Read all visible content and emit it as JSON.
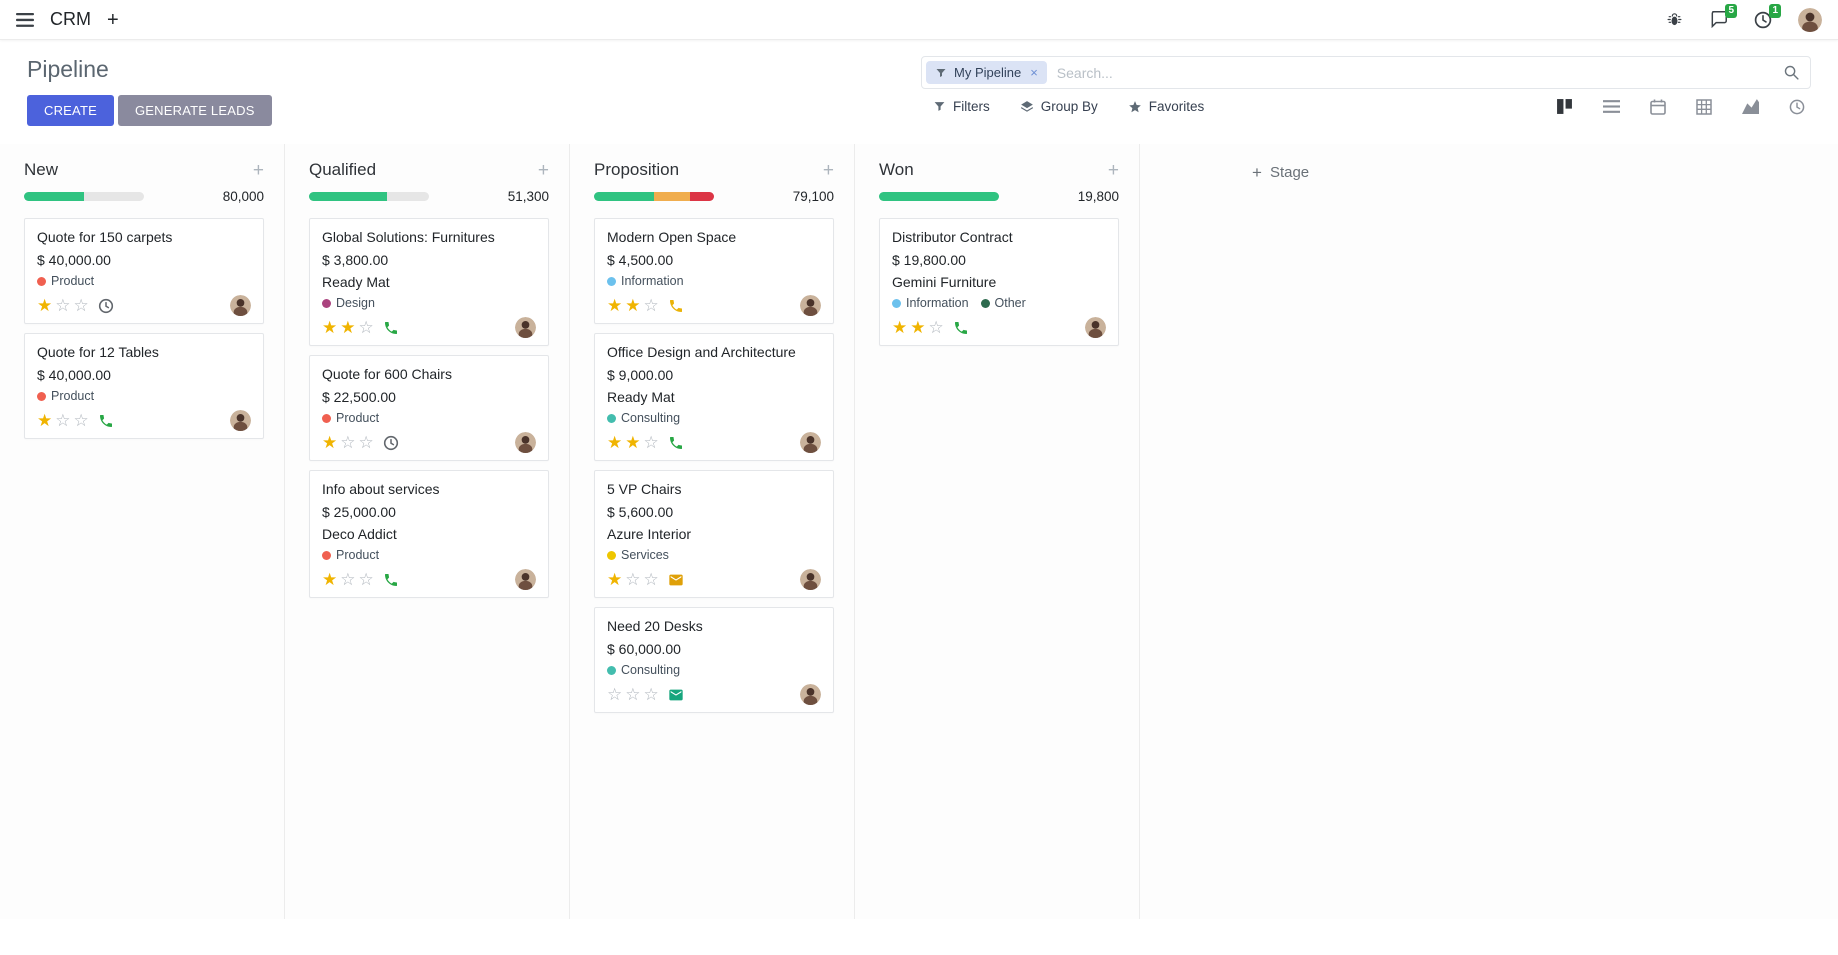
{
  "ui_glyphs": {
    "plus": "+",
    "close": "×",
    "star_filled": "★",
    "star_empty": "☆"
  },
  "colors": {
    "primary": "#4c62dc",
    "secondary": "#8a8a9e",
    "success": "#30c381",
    "warning": "#f0ad4e",
    "danger": "#dc3545",
    "star_gold": "#f0b400",
    "badge_green": "#28a745"
  },
  "navbar": {
    "app_name": "CRM",
    "messages_badge": "5",
    "activities_badge": "1"
  },
  "control_panel": {
    "title": "Pipeline",
    "create_label": "CREATE",
    "generate_leads_label": "GENERATE LEADS",
    "filters_label": "Filters",
    "group_by_label": "Group By",
    "favorites_label": "Favorites",
    "search": {
      "facet_label": "My Pipeline",
      "placeholder": "Search..."
    },
    "view_switcher": [
      "kanban",
      "list",
      "calendar",
      "pivot",
      "graph",
      "activity"
    ],
    "active_view": "kanban"
  },
  "board": {
    "add_stage_label": "Stage",
    "columns": [
      {
        "name": "New",
        "total": "80,000",
        "progress": [
          {
            "color": "#30c381",
            "pct": 50
          }
        ],
        "cards": [
          {
            "title": "Quote for 150 carpets",
            "amount": "$ 40,000.00",
            "partner": "",
            "tags": [
              {
                "label": "Product",
                "color": "#f06050"
              }
            ],
            "stars_filled": 1,
            "stars_total": 3,
            "activity": {
              "icon": "clock",
              "color": "#62676d"
            }
          },
          {
            "title": "Quote for 12 Tables",
            "amount": "$ 40,000.00",
            "partner": "",
            "tags": [
              {
                "label": "Product",
                "color": "#f06050"
              }
            ],
            "stars_filled": 1,
            "stars_total": 3,
            "activity": {
              "icon": "phone",
              "color": "#28a745"
            }
          }
        ]
      },
      {
        "name": "Qualified",
        "total": "51,300",
        "progress": [
          {
            "color": "#30c381",
            "pct": 65
          }
        ],
        "cards": [
          {
            "title": "Global Solutions: Furnitures",
            "amount": "$ 3,800.00",
            "partner": "Ready Mat",
            "tags": [
              {
                "label": "Design",
                "color": "#ab437f"
              }
            ],
            "stars_filled": 2,
            "stars_total": 3,
            "activity": {
              "icon": "phone",
              "color": "#28a745"
            }
          },
          {
            "title": "Quote for 600 Chairs",
            "amount": "$ 22,500.00",
            "partner": "",
            "tags": [
              {
                "label": "Product",
                "color": "#f06050"
              }
            ],
            "stars_filled": 1,
            "stars_total": 3,
            "activity": {
              "icon": "clock",
              "color": "#62676d"
            }
          },
          {
            "title": "Info about services",
            "amount": "$ 25,000.00",
            "partner": "Deco Addict",
            "tags": [
              {
                "label": "Product",
                "color": "#f06050"
              }
            ],
            "stars_filled": 1,
            "stars_total": 3,
            "activity": {
              "icon": "phone",
              "color": "#28a745"
            }
          }
        ]
      },
      {
        "name": "Proposition",
        "total": "79,100",
        "progress": [
          {
            "color": "#30c381",
            "pct": 50
          },
          {
            "color": "#f0ad4e",
            "pct": 30
          },
          {
            "color": "#dc3545",
            "pct": 20
          }
        ],
        "cards": [
          {
            "title": "Modern Open Space",
            "amount": "$ 4,500.00",
            "partner": "",
            "tags": [
              {
                "label": "Information",
                "color": "#6cc1ed"
              }
            ],
            "stars_filled": 2,
            "stars_total": 3,
            "activity": {
              "icon": "phone",
              "color": "#eab308"
            }
          },
          {
            "title": "Office Design and Architecture",
            "amount": "$ 9,000.00",
            "partner": "Ready Mat",
            "tags": [
              {
                "label": "Consulting",
                "color": "#43bdae"
              }
            ],
            "stars_filled": 2,
            "stars_total": 3,
            "activity": {
              "icon": "phone",
              "color": "#28a745"
            }
          },
          {
            "title": "5 VP Chairs",
            "amount": "$ 5,600.00",
            "partner": "Azure Interior",
            "tags": [
              {
                "label": "Services",
                "color": "#eec600"
              }
            ],
            "stars_filled": 1,
            "stars_total": 3,
            "activity": {
              "icon": "envelope",
              "color": "#dfa008"
            }
          },
          {
            "title": "Need 20 Desks",
            "amount": "$ 60,000.00",
            "partner": "",
            "tags": [
              {
                "label": "Consulting",
                "color": "#43bdae"
              }
            ],
            "stars_filled": 0,
            "stars_total": 3,
            "activity": {
              "icon": "envelope",
              "color": "#16a57d"
            }
          }
        ]
      },
      {
        "name": "Won",
        "total": "19,800",
        "progress": [
          {
            "color": "#30c381",
            "pct": 100
          }
        ],
        "cards": [
          {
            "title": "Distributor Contract",
            "amount": "$ 19,800.00",
            "partner": "Gemini Furniture",
            "tags": [
              {
                "label": "Information",
                "color": "#6cc1ed"
              },
              {
                "label": "Other",
                "color": "#2e6b4f"
              }
            ],
            "stars_filled": 2,
            "stars_total": 3,
            "activity": {
              "icon": "phone",
              "color": "#28a745"
            }
          }
        ]
      }
    ]
  }
}
